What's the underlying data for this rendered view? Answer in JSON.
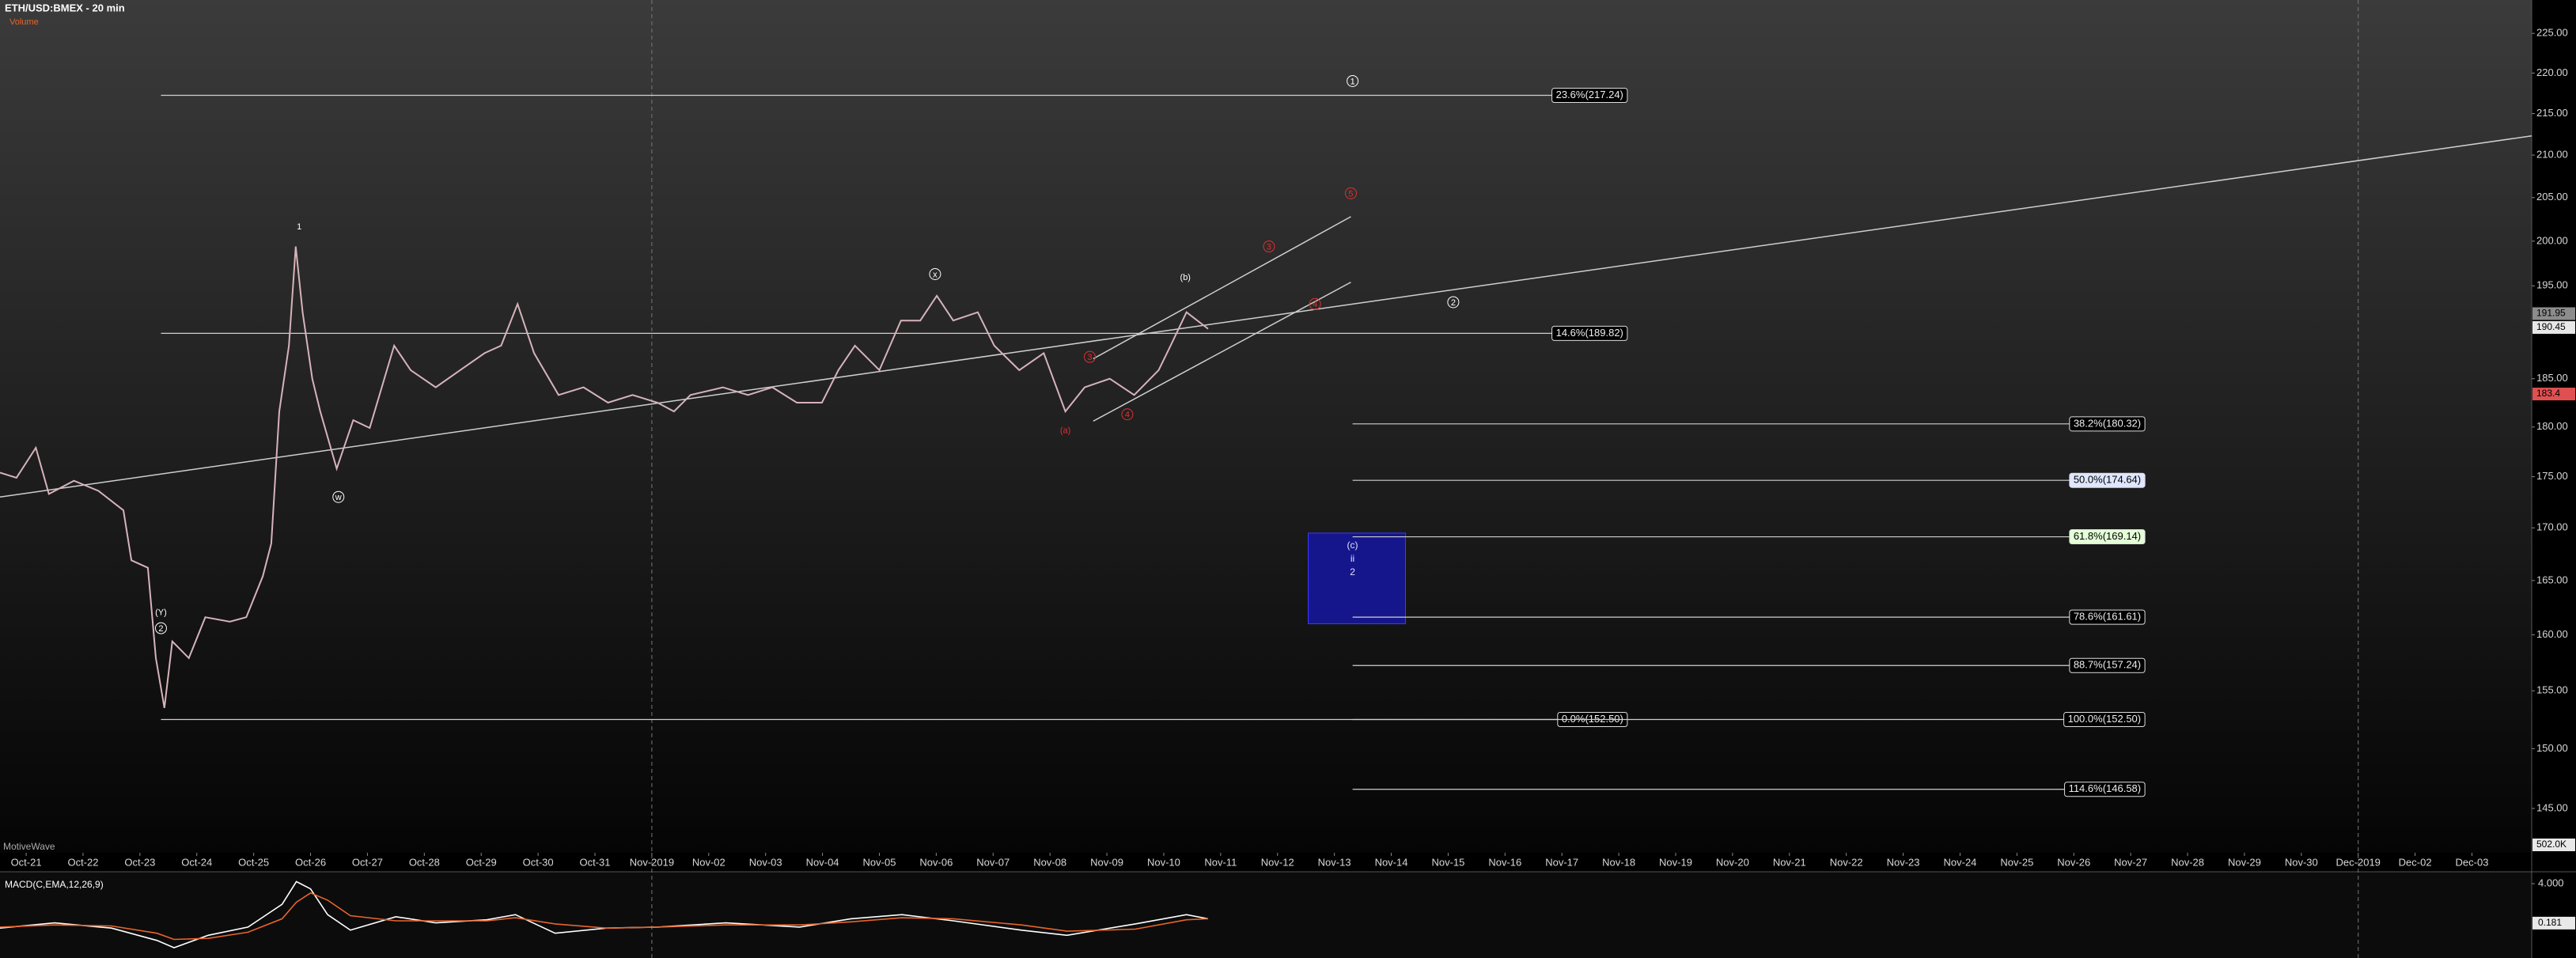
{
  "chart_data": {
    "type": "line",
    "title": "ETH/USD:BMEX - 20 min",
    "subtitle": "Volume",
    "watermark": "MotiveWave",
    "log_scale": true,
    "color": "#d7b3bb",
    "x": [
      -0.46,
      -0.17,
      0.17,
      0.4,
      0.84,
      1.27,
      1.71,
      1.85,
      2.14,
      2.28,
      2.43,
      2.57,
      2.86,
      3.15,
      3.58,
      3.87,
      4.16,
      4.31,
      4.45,
      4.62,
      4.74,
      4.86,
      5.03,
      5.17,
      5.46,
      5.75,
      6.04,
      6.47,
      6.76,
      7.2,
      7.63,
      8.06,
      8.35,
      8.64,
      8.93,
      9.36,
      9.8,
      10.23,
      10.66,
      11.1,
      11.39,
      11.68,
      12.25,
      12.69,
      13.12,
      13.55,
      13.99,
      14.28,
      14.57,
      15.0,
      15.38,
      15.72,
      16.01,
      16.3,
      16.73,
      17.02,
      17.46,
      17.89,
      18.27,
      18.61,
      19.05,
      19.48,
      19.91,
      20.12,
      20.4,
      20.78
    ],
    "values": [
      175.4,
      174.9,
      177.9,
      173.3,
      174.6,
      173.6,
      171.7,
      166.9,
      166.2,
      157.9,
      153.5,
      159.4,
      157.9,
      161.6,
      161.2,
      161.6,
      165.4,
      168.5,
      181.6,
      188.5,
      199.4,
      192.1,
      185.0,
      181.6,
      175.8,
      180.7,
      179.9,
      188.5,
      185.9,
      184.1,
      185.9,
      187.7,
      188.5,
      193.0,
      187.7,
      183.3,
      184.1,
      182.5,
      183.3,
      182.5,
      181.6,
      183.3,
      184.1,
      183.3,
      184.1,
      182.5,
      182.5,
      185.9,
      188.5,
      185.9,
      191.2,
      191.2,
      193.9,
      191.2,
      192.1,
      188.5,
      185.9,
      187.7,
      181.6,
      184.1,
      185.0,
      183.3,
      185.9,
      188.5,
      192.1,
      190.3
    ],
    "xlim": [
      -0.46,
      44.05
    ],
    "ylim": [
      141.4,
      229.3
    ],
    "yticks": [
      {
        "value": 145,
        "label": "145.00"
      },
      {
        "value": 150,
        "label": "150.00"
      },
      {
        "value": 155,
        "label": "155.00"
      },
      {
        "value": 160,
        "label": "160.00"
      },
      {
        "value": 165,
        "label": "165.00"
      },
      {
        "value": 170,
        "label": "170.00"
      },
      {
        "value": 175,
        "label": "175.00"
      },
      {
        "value": 180,
        "label": "180.00"
      },
      {
        "value": 185,
        "label": "185.00"
      },
      {
        "value": 195,
        "label": "195.00"
      },
      {
        "value": 200,
        "label": "200.00"
      },
      {
        "value": 205,
        "label": "205.00"
      },
      {
        "value": 210,
        "label": "210.00"
      },
      {
        "value": 215,
        "label": "215.00"
      },
      {
        "value": 220,
        "label": "220.00"
      },
      {
        "value": 225,
        "label": "225.00"
      }
    ],
    "xticks": [
      {
        "value": 0,
        "label": "Oct-21"
      },
      {
        "value": 1,
        "label": "Oct-22"
      },
      {
        "value": 2,
        "label": "Oct-23"
      },
      {
        "value": 3,
        "label": "Oct-24"
      },
      {
        "value": 4,
        "label": "Oct-25"
      },
      {
        "value": 5,
        "label": "Oct-26"
      },
      {
        "value": 6,
        "label": "Oct-27"
      },
      {
        "value": 7,
        "label": "Oct-28"
      },
      {
        "value": 8,
        "label": "Oct-29"
      },
      {
        "value": 9,
        "label": "Oct-30"
      },
      {
        "value": 10,
        "label": "Oct-31"
      },
      {
        "value": 11,
        "label": "Nov-2019"
      },
      {
        "value": 12,
        "label": "Nov-02"
      },
      {
        "value": 13,
        "label": "Nov-03"
      },
      {
        "value": 14,
        "label": "Nov-04"
      },
      {
        "value": 15,
        "label": "Nov-05"
      },
      {
        "value": 16,
        "label": "Nov-06"
      },
      {
        "value": 17,
        "label": "Nov-07"
      },
      {
        "value": 18,
        "label": "Nov-08"
      },
      {
        "value": 19,
        "label": "Nov-09"
      },
      {
        "value": 20,
        "label": "Nov-10"
      },
      {
        "value": 21,
        "label": "Nov-11"
      },
      {
        "value": 22,
        "label": "Nov-12"
      },
      {
        "value": 23,
        "label": "Nov-13"
      },
      {
        "value": 24,
        "label": "Nov-14"
      },
      {
        "value": 25,
        "label": "Nov-15"
      },
      {
        "value": 26,
        "label": "Nov-16"
      },
      {
        "value": 27,
        "label": "Nov-17"
      },
      {
        "value": 28,
        "label": "Nov-18"
      },
      {
        "value": 29,
        "label": "Nov-19"
      },
      {
        "value": 30,
        "label": "Nov-20"
      },
      {
        "value": 31,
        "label": "Nov-21"
      },
      {
        "value": 32,
        "label": "Nov-22"
      },
      {
        "value": 33,
        "label": "Nov-23"
      },
      {
        "value": 34,
        "label": "Nov-24"
      },
      {
        "value": 35,
        "label": "Nov-25"
      },
      {
        "value": 36,
        "label": "Nov-26"
      },
      {
        "value": 37,
        "label": "Nov-27"
      },
      {
        "value": 38,
        "label": "Nov-28"
      },
      {
        "value": 39,
        "label": "Nov-29"
      },
      {
        "value": 40,
        "label": "Nov-30"
      },
      {
        "value": 41,
        "label": "Dec-2019"
      },
      {
        "value": 42,
        "label": "Dec-02"
      },
      {
        "value": 43,
        "label": "Dec-03"
      }
    ],
    "dashed_xticks": [
      11,
      41
    ],
    "trend_lines": [
      {
        "x": [
          -0.46,
          44.05
        ],
        "y": [
          173.0,
          212.3
        ]
      },
      {
        "x": [
          18.76,
          23.29
        ],
        "y": [
          187.1,
          202.8
        ]
      },
      {
        "x": [
          18.76,
          23.29
        ],
        "y": [
          180.6,
          195.4
        ]
      }
    ],
    "levels": [
      {
        "label": "23.6%(217.24)",
        "value": 217.24,
        "x": [
          2.37,
          28.15
        ]
      },
      {
        "label": "14.6%(189.82)",
        "value": 189.82,
        "x": [
          2.37,
          28.15
        ]
      },
      {
        "label": "0.0%(152.50)",
        "value": 152.5,
        "x": [
          2.37,
          28.15
        ]
      },
      {
        "label": "38.2%(180.32)",
        "value": 180.32,
        "x": [
          23.32,
          37.25
        ]
      },
      {
        "label": "50.0%(174.64)",
        "value": 174.64,
        "x": [
          23.32,
          37.25
        ],
        "box_color": "#dfe6ff"
      },
      {
        "label": "61.8%(169.14)",
        "value": 169.14,
        "x": [
          23.32,
          37.25
        ],
        "box_color": "#e4ffd8"
      },
      {
        "label": "78.6%(161.61)",
        "value": 161.61,
        "x": [
          23.32,
          37.25
        ]
      },
      {
        "label": "88.7%(157.24)",
        "value": 157.24,
        "x": [
          23.32,
          37.25
        ]
      },
      {
        "label": "100.0%(152.50)",
        "value": 152.5,
        "x": [
          23.32,
          37.25
        ]
      },
      {
        "label": "114.6%(146.58)",
        "value": 146.58,
        "x": [
          23.32,
          37.25
        ]
      }
    ],
    "wave_labels": [
      {
        "text": "1",
        "x": 4.8,
        "y": 201.7,
        "color": "#ffffff"
      },
      {
        "text": "w",
        "x": 5.49,
        "y": 173.0,
        "color": "#ffffff",
        "circled": true
      },
      {
        "text": "x",
        "x": 15.98,
        "y": 196.3,
        "color": "#ffffff",
        "circled": true
      },
      {
        "text": "(Y)",
        "x": 2.37,
        "y": 162.1,
        "color": "#ffffff"
      },
      {
        "text": "2",
        "x": 2.37,
        "y": 160.6,
        "color": "#ffffff",
        "circled": true
      },
      {
        "text": "(a)",
        "x": 18.27,
        "y": 179.7,
        "color": "#e03030"
      },
      {
        "text": "(b)",
        "x": 20.38,
        "y": 196.0,
        "color": "#ffffff"
      },
      {
        "text": "3",
        "x": 18.7,
        "y": 187.3,
        "color": "#e03030",
        "circled": true
      },
      {
        "text": "4",
        "x": 19.36,
        "y": 181.3,
        "color": "#e03030",
        "circled": true
      },
      {
        "text": "3",
        "x": 21.85,
        "y": 199.4,
        "color": "#e03030",
        "circled": true
      },
      {
        "text": "4",
        "x": 22.66,
        "y": 193.0,
        "color": "#e03030",
        "circled": true
      },
      {
        "text": "5",
        "x": 23.29,
        "y": 205.5,
        "color": "#e03030",
        "circled": true
      },
      {
        "text": "1",
        "x": 23.32,
        "y": 219.0,
        "color": "#ffffff",
        "circled": true
      },
      {
        "text": "2",
        "x": 25.09,
        "y": 193.2,
        "color": "#ffffff",
        "circled": true
      }
    ],
    "zone": {
      "x": [
        22.54,
        24.25
      ],
      "y": [
        161.0,
        169.5
      ],
      "color": "#16168c",
      "texts": [
        "(c)",
        "ii",
        "2"
      ]
    },
    "price_markers": [
      {
        "value": 191.95,
        "bg": "#8c8c8c"
      },
      {
        "value": 190.45,
        "bg": "#e8e8e8"
      },
      {
        "value": 183.4,
        "bg": "#e05050"
      }
    ],
    "volume_marker": {
      "value": 502000,
      "label": "502.0K"
    },
    "macd": {
      "title": "MACD(C,EMA,12,26,9)",
      "x": [
        -0.46,
        0.5,
        1.5,
        2.3,
        2.6,
        3.2,
        3.9,
        4.5,
        4.75,
        5.0,
        5.3,
        5.7,
        6.5,
        7.2,
        8.1,
        8.6,
        9.3,
        10.2,
        11.1,
        12.3,
        13.6,
        14.5,
        15.4,
        16.3,
        17.5,
        18.3,
        19.5,
        20.4,
        20.78
      ],
      "series": [
        {
          "color": "#ffffff",
          "values": [
            -0.3,
            0.2,
            -0.3,
            -1.5,
            -2.2,
            -1.0,
            -0.2,
            2.0,
            4.2,
            3.5,
            1.0,
            -0.5,
            0.8,
            0.2,
            0.5,
            1.0,
            -0.8,
            -0.3,
            -0.2,
            0.2,
            -0.2,
            0.6,
            1.0,
            0.4,
            -0.5,
            -1.0,
            0.1,
            1.0,
            0.6
          ]
        },
        {
          "color": "#e8642a",
          "values": [
            -0.2,
            0.0,
            -0.1,
            -0.8,
            -1.4,
            -1.3,
            -0.7,
            0.6,
            2.2,
            3.1,
            2.4,
            0.9,
            0.4,
            0.4,
            0.4,
            0.7,
            0.1,
            -0.3,
            -0.2,
            0.0,
            0.0,
            0.3,
            0.7,
            0.6,
            0.0,
            -0.6,
            -0.4,
            0.5,
            0.6
          ]
        }
      ],
      "xlim": [
        -0.46,
        44.05
      ],
      "ylim": [
        -3.2,
        5.0
      ],
      "yticks": [
        {
          "value": 4,
          "label": "4.000"
        }
      ],
      "marker": 0.181
    }
  }
}
